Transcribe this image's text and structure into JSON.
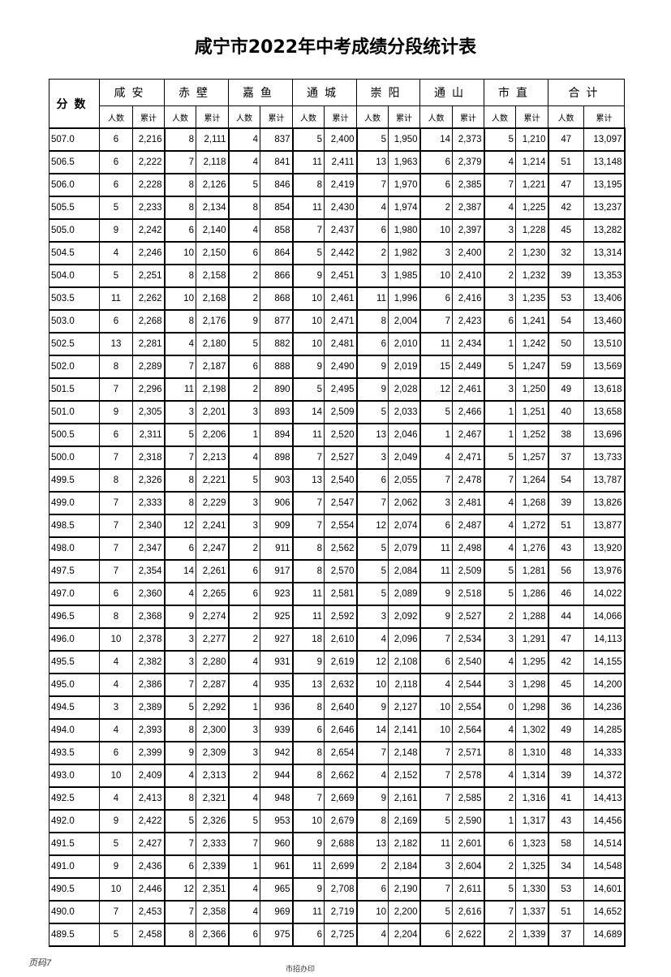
{
  "title": "咸宁市2022年中考成绩分段统计表",
  "header": {
    "score": "分数",
    "regions": [
      "咸安",
      "赤壁",
      "嘉鱼",
      "通城",
      "崇阳",
      "通山",
      "市直",
      "合计"
    ],
    "count": "人数",
    "cumulative": "累计"
  },
  "rows": [
    [
      "507.0",
      "6",
      "2,216",
      "8",
      "2,111",
      "4",
      "837",
      "5",
      "2,400",
      "5",
      "1,950",
      "14",
      "2,373",
      "5",
      "1,210",
      "47",
      "13,097"
    ],
    [
      "506.5",
      "6",
      "2,222",
      "7",
      "2,118",
      "4",
      "841",
      "11",
      "2,411",
      "13",
      "1,963",
      "6",
      "2,379",
      "4",
      "1,214",
      "51",
      "13,148"
    ],
    [
      "506.0",
      "6",
      "2,228",
      "8",
      "2,126",
      "5",
      "846",
      "8",
      "2,419",
      "7",
      "1,970",
      "6",
      "2,385",
      "7",
      "1,221",
      "47",
      "13,195"
    ],
    [
      "505.5",
      "5",
      "2,233",
      "8",
      "2,134",
      "8",
      "854",
      "11",
      "2,430",
      "4",
      "1,974",
      "2",
      "2,387",
      "4",
      "1,225",
      "42",
      "13,237"
    ],
    [
      "505.0",
      "9",
      "2,242",
      "6",
      "2,140",
      "4",
      "858",
      "7",
      "2,437",
      "6",
      "1,980",
      "10",
      "2,397",
      "3",
      "1,228",
      "45",
      "13,282"
    ],
    [
      "504.5",
      "4",
      "2,246",
      "10",
      "2,150",
      "6",
      "864",
      "5",
      "2,442",
      "2",
      "1,982",
      "3",
      "2,400",
      "2",
      "1,230",
      "32",
      "13,314"
    ],
    [
      "504.0",
      "5",
      "2,251",
      "8",
      "2,158",
      "2",
      "866",
      "9",
      "2,451",
      "3",
      "1,985",
      "10",
      "2,410",
      "2",
      "1,232",
      "39",
      "13,353"
    ],
    [
      "503.5",
      "11",
      "2,262",
      "10",
      "2,168",
      "2",
      "868",
      "10",
      "2,461",
      "11",
      "1,996",
      "6",
      "2,416",
      "3",
      "1,235",
      "53",
      "13,406"
    ],
    [
      "503.0",
      "6",
      "2,268",
      "8",
      "2,176",
      "9",
      "877",
      "10",
      "2,471",
      "8",
      "2,004",
      "7",
      "2,423",
      "6",
      "1,241",
      "54",
      "13,460"
    ],
    [
      "502.5",
      "13",
      "2,281",
      "4",
      "2,180",
      "5",
      "882",
      "10",
      "2,481",
      "6",
      "2,010",
      "11",
      "2,434",
      "1",
      "1,242",
      "50",
      "13,510"
    ],
    [
      "502.0",
      "8",
      "2,289",
      "7",
      "2,187",
      "6",
      "888",
      "9",
      "2,490",
      "9",
      "2,019",
      "15",
      "2,449",
      "5",
      "1,247",
      "59",
      "13,569"
    ],
    [
      "501.5",
      "7",
      "2,296",
      "11",
      "2,198",
      "2",
      "890",
      "5",
      "2,495",
      "9",
      "2,028",
      "12",
      "2,461",
      "3",
      "1,250",
      "49",
      "13,618"
    ],
    [
      "501.0",
      "9",
      "2,305",
      "3",
      "2,201",
      "3",
      "893",
      "14",
      "2,509",
      "5",
      "2,033",
      "5",
      "2,466",
      "1",
      "1,251",
      "40",
      "13,658"
    ],
    [
      "500.5",
      "6",
      "2,311",
      "5",
      "2,206",
      "1",
      "894",
      "11",
      "2,520",
      "13",
      "2,046",
      "1",
      "2,467",
      "1",
      "1,252",
      "38",
      "13,696"
    ],
    [
      "500.0",
      "7",
      "2,318",
      "7",
      "2,213",
      "4",
      "898",
      "7",
      "2,527",
      "3",
      "2,049",
      "4",
      "2,471",
      "5",
      "1,257",
      "37",
      "13,733"
    ],
    [
      "499.5",
      "8",
      "2,326",
      "8",
      "2,221",
      "5",
      "903",
      "13",
      "2,540",
      "6",
      "2,055",
      "7",
      "2,478",
      "7",
      "1,264",
      "54",
      "13,787"
    ],
    [
      "499.0",
      "7",
      "2,333",
      "8",
      "2,229",
      "3",
      "906",
      "7",
      "2,547",
      "7",
      "2,062",
      "3",
      "2,481",
      "4",
      "1,268",
      "39",
      "13,826"
    ],
    [
      "498.5",
      "7",
      "2,340",
      "12",
      "2,241",
      "3",
      "909",
      "7",
      "2,554",
      "12",
      "2,074",
      "6",
      "2,487",
      "4",
      "1,272",
      "51",
      "13,877"
    ],
    [
      "498.0",
      "7",
      "2,347",
      "6",
      "2,247",
      "2",
      "911",
      "8",
      "2,562",
      "5",
      "2,079",
      "11",
      "2,498",
      "4",
      "1,276",
      "43",
      "13,920"
    ],
    [
      "497.5",
      "7",
      "2,354",
      "14",
      "2,261",
      "6",
      "917",
      "8",
      "2,570",
      "5",
      "2,084",
      "11",
      "2,509",
      "5",
      "1,281",
      "56",
      "13,976"
    ],
    [
      "497.0",
      "6",
      "2,360",
      "4",
      "2,265",
      "6",
      "923",
      "11",
      "2,581",
      "5",
      "2,089",
      "9",
      "2,518",
      "5",
      "1,286",
      "46",
      "14,022"
    ],
    [
      "496.5",
      "8",
      "2,368",
      "9",
      "2,274",
      "2",
      "925",
      "11",
      "2,592",
      "3",
      "2,092",
      "9",
      "2,527",
      "2",
      "1,288",
      "44",
      "14,066"
    ],
    [
      "496.0",
      "10",
      "2,378",
      "3",
      "2,277",
      "2",
      "927",
      "18",
      "2,610",
      "4",
      "2,096",
      "7",
      "2,534",
      "3",
      "1,291",
      "47",
      "14,113"
    ],
    [
      "495.5",
      "4",
      "2,382",
      "3",
      "2,280",
      "4",
      "931",
      "9",
      "2,619",
      "12",
      "2,108",
      "6",
      "2,540",
      "4",
      "1,295",
      "42",
      "14,155"
    ],
    [
      "495.0",
      "4",
      "2,386",
      "7",
      "2,287",
      "4",
      "935",
      "13",
      "2,632",
      "10",
      "2,118",
      "4",
      "2,544",
      "3",
      "1,298",
      "45",
      "14,200"
    ],
    [
      "494.5",
      "3",
      "2,389",
      "5",
      "2,292",
      "1",
      "936",
      "8",
      "2,640",
      "9",
      "2,127",
      "10",
      "2,554",
      "0",
      "1,298",
      "36",
      "14,236"
    ],
    [
      "494.0",
      "4",
      "2,393",
      "8",
      "2,300",
      "3",
      "939",
      "6",
      "2,646",
      "14",
      "2,141",
      "10",
      "2,564",
      "4",
      "1,302",
      "49",
      "14,285"
    ],
    [
      "493.5",
      "6",
      "2,399",
      "9",
      "2,309",
      "3",
      "942",
      "8",
      "2,654",
      "7",
      "2,148",
      "7",
      "2,571",
      "8",
      "1,310",
      "48",
      "14,333"
    ],
    [
      "493.0",
      "10",
      "2,409",
      "4",
      "2,313",
      "2",
      "944",
      "8",
      "2,662",
      "4",
      "2,152",
      "7",
      "2,578",
      "4",
      "1,314",
      "39",
      "14,372"
    ],
    [
      "492.5",
      "4",
      "2,413",
      "8",
      "2,321",
      "4",
      "948",
      "7",
      "2,669",
      "9",
      "2,161",
      "7",
      "2,585",
      "2",
      "1,316",
      "41",
      "14,413"
    ],
    [
      "492.0",
      "9",
      "2,422",
      "5",
      "2,326",
      "5",
      "953",
      "10",
      "2,679",
      "8",
      "2,169",
      "5",
      "2,590",
      "1",
      "1,317",
      "43",
      "14,456"
    ],
    [
      "491.5",
      "5",
      "2,427",
      "7",
      "2,333",
      "7",
      "960",
      "9",
      "2,688",
      "13",
      "2,182",
      "11",
      "2,601",
      "6",
      "1,323",
      "58",
      "14,514"
    ],
    [
      "491.0",
      "9",
      "2,436",
      "6",
      "2,339",
      "1",
      "961",
      "11",
      "2,699",
      "2",
      "2,184",
      "3",
      "2,604",
      "2",
      "1,325",
      "34",
      "14,548"
    ],
    [
      "490.5",
      "10",
      "2,446",
      "12",
      "2,351",
      "4",
      "965",
      "9",
      "2,708",
      "6",
      "2,190",
      "7",
      "2,611",
      "5",
      "1,330",
      "53",
      "14,601"
    ],
    [
      "490.0",
      "7",
      "2,453",
      "7",
      "2,358",
      "4",
      "969",
      "11",
      "2,719",
      "10",
      "2,200",
      "5",
      "2,616",
      "7",
      "1,337",
      "51",
      "14,652"
    ],
    [
      "489.5",
      "5",
      "2,458",
      "8",
      "2,366",
      "6",
      "975",
      "6",
      "2,725",
      "4",
      "2,204",
      "6",
      "2,622",
      "2",
      "1,339",
      "37",
      "14,689"
    ]
  ],
  "footer": {
    "page": "页码7",
    "issuer": "市招办印"
  }
}
